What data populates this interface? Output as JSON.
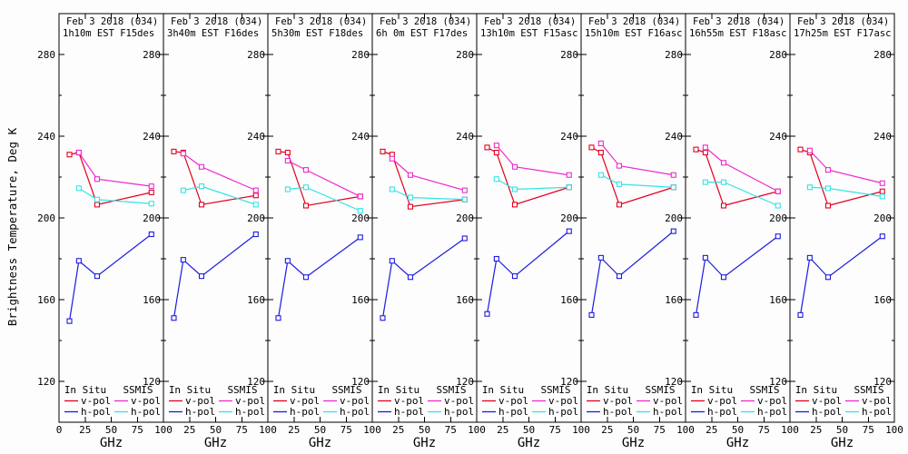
{
  "window": {
    "title": "Brightness temperature comparison plots"
  },
  "colors": {
    "insitu_v": "#e4001e",
    "insitu_h": "#1b1be0",
    "ssmis_v": "#ee29cf",
    "ssmis_h": "#35e3e3",
    "axis": "#000000",
    "background": "#fdfdfd"
  },
  "legend": {
    "group1_header": "In Situ",
    "group2_header": "SSMIS",
    "vpol_label": "v-pol",
    "hpol_label": "h-pol"
  },
  "chart_data": {
    "type": "line",
    "ylabel": "Brightness Temperature, Deg K",
    "xlabel": "GHz",
    "ylim": [
      100,
      300
    ],
    "xlim": [
      0,
      100
    ],
    "y_ticks": [
      280,
      240,
      200,
      160,
      120
    ],
    "y_minor_ticks": [
      260,
      220,
      180,
      140
    ],
    "x_ticks": [
      0,
      25,
      50,
      75,
      100
    ],
    "legend_position": "bottom-inside-each-panel",
    "grid": false,
    "series_defs": [
      {
        "key": "insitu_v",
        "group": "In Situ",
        "pol": "v-pol",
        "color_key": "insitu_v",
        "x": [
          10,
          19,
          36.5,
          88.5
        ]
      },
      {
        "key": "ssmis_v",
        "group": "SSMIS",
        "pol": "v-pol",
        "color_key": "ssmis_v",
        "x": [
          19,
          36.5,
          88.5
        ]
      },
      {
        "key": "ssmis_h",
        "group": "SSMIS",
        "pol": "h-pol",
        "color_key": "ssmis_h",
        "x": [
          19,
          36.5,
          88.5
        ]
      },
      {
        "key": "insitu_h",
        "group": "In Situ",
        "pol": "h-pol",
        "color_key": "insitu_h",
        "x": [
          10,
          19,
          36.5,
          88.5
        ]
      }
    ],
    "panels": [
      {
        "title_line1": "Feb 3 2018 (034)",
        "title_line2": "1h10m EST F15des",
        "insitu_v": [
          231,
          232,
          206.5,
          212.5
        ],
        "ssmis_v": [
          232,
          219,
          215.5
        ],
        "ssmis_h": [
          214.5,
          209,
          207
        ],
        "insitu_h": [
          149.5,
          179,
          171.5,
          192
        ]
      },
      {
        "title_line1": "Feb 3 2018 (034)",
        "title_line2": "3h40m EST F16des",
        "insitu_v": [
          232.5,
          232,
          206.5,
          211
        ],
        "ssmis_v": [
          231.5,
          225,
          213.5
        ],
        "ssmis_h": [
          213.5,
          215.5,
          206.5
        ],
        "insitu_h": [
          151,
          179.5,
          171.5,
          192
        ]
      },
      {
        "title_line1": "Feb 3 2018 (034)",
        "title_line2": "5h30m EST F18des",
        "insitu_v": [
          232.5,
          232,
          206,
          210.5
        ],
        "ssmis_v": [
          228,
          223.5,
          210.5
        ],
        "ssmis_h": [
          214,
          215,
          203.5
        ],
        "insitu_h": [
          151,
          179,
          171,
          190.5
        ]
      },
      {
        "title_line1": "Feb 3 2018 (034)",
        "title_line2": "6h 0m EST F17des",
        "insitu_v": [
          232.5,
          231,
          205.5,
          209
        ],
        "ssmis_v": [
          229,
          221,
          213.5
        ],
        "ssmis_h": [
          214,
          210,
          209
        ],
        "insitu_h": [
          151,
          179,
          171,
          190
        ]
      },
      {
        "title_line1": "Feb 3 2018 (034)",
        "title_line2": "13h10m EST F15asc",
        "insitu_v": [
          234.5,
          232,
          206.5,
          215
        ],
        "ssmis_v": [
          235.5,
          225,
          221
        ],
        "ssmis_h": [
          219,
          214,
          215
        ],
        "insitu_h": [
          153,
          180,
          171.5,
          193.5
        ]
      },
      {
        "title_line1": "Feb 3 2018 (034)",
        "title_line2": "15h10m EST F16asc",
        "insitu_v": [
          234.5,
          232,
          206.5,
          215
        ],
        "ssmis_v": [
          236.5,
          225.5,
          221
        ],
        "ssmis_h": [
          221,
          216.5,
          215
        ],
        "insitu_h": [
          152.5,
          180.5,
          171.5,
          193.5
        ]
      },
      {
        "title_line1": "Feb 3 2018 (034)",
        "title_line2": "16h55m EST F18asc",
        "insitu_v": [
          233.5,
          232,
          206,
          213
        ],
        "ssmis_v": [
          234.5,
          227,
          213
        ],
        "ssmis_h": [
          217.5,
          217.5,
          206
        ],
        "insitu_h": [
          152.5,
          180.5,
          171,
          191
        ]
      },
      {
        "title_line1": "Feb 3 2018 (034)",
        "title_line2": "17h25m EST F17asc",
        "insitu_v": [
          233.5,
          232,
          206,
          213
        ],
        "ssmis_v": [
          233,
          223.5,
          217
        ],
        "ssmis_h": [
          215,
          214.5,
          210.5
        ],
        "insitu_h": [
          152.5,
          180.5,
          171,
          191
        ]
      }
    ]
  }
}
